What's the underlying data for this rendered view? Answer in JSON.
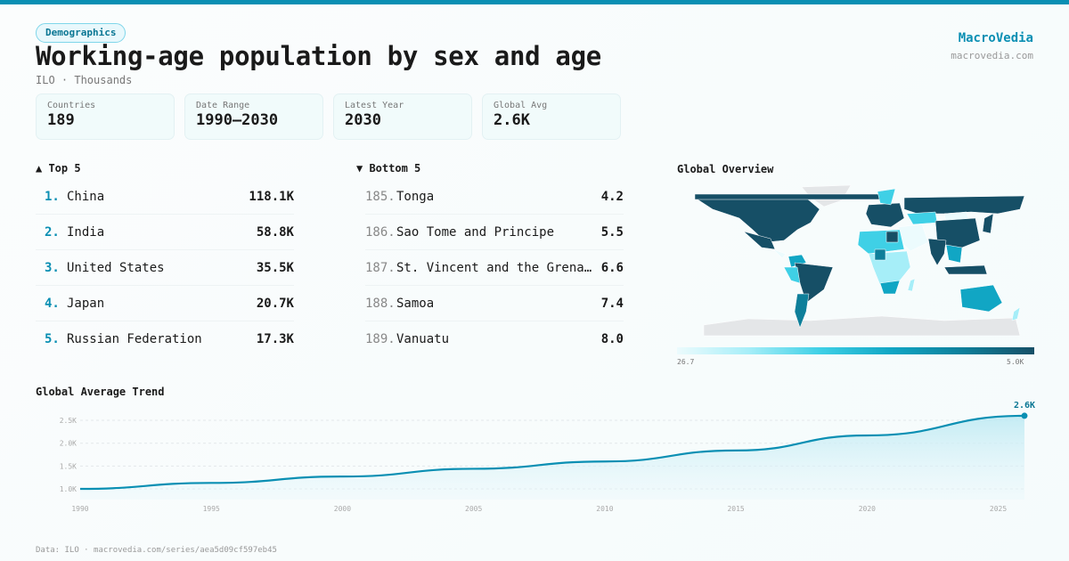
{
  "header": {
    "badge": "Demographics",
    "title": "Working-age population by sex and age",
    "subtitle": "ILO · Thousands",
    "brand": "MacroVedia",
    "brand_url": "macrovedia.com"
  },
  "stats": [
    {
      "label": "Countries",
      "value": "189"
    },
    {
      "label": "Date Range",
      "value": "1990–2030"
    },
    {
      "label": "Latest Year",
      "value": "2030"
    },
    {
      "label": "Global Avg",
      "value": "2.6K"
    }
  ],
  "top": {
    "title": "▲ Top 5",
    "items": [
      {
        "rank": "1.",
        "name": "China",
        "value": "118.1K"
      },
      {
        "rank": "2.",
        "name": "India",
        "value": "58.8K"
      },
      {
        "rank": "3.",
        "name": "United States",
        "value": "35.5K"
      },
      {
        "rank": "4.",
        "name": "Japan",
        "value": "20.7K"
      },
      {
        "rank": "5.",
        "name": "Russian Federation",
        "value": "17.3K"
      }
    ]
  },
  "bottom": {
    "title": "▼ Bottom 5",
    "items": [
      {
        "rank": "185.",
        "name": "Tonga",
        "value": "4.2"
      },
      {
        "rank": "186.",
        "name": "Sao Tome and Principe",
        "value": "5.5"
      },
      {
        "rank": "187.",
        "name": "St. Vincent and the Grenadines",
        "value": "6.6"
      },
      {
        "rank": "188.",
        "name": "Samoa",
        "value": "7.4"
      },
      {
        "rank": "189.",
        "name": "Vanuatu",
        "value": "8.0"
      }
    ]
  },
  "map": {
    "title": "Global Overview",
    "legend_min": "26.7",
    "legend_max": "5.0K",
    "colors": [
      "#ecfbfd",
      "#a6eef8",
      "#3fd0e6",
      "#11a6c4",
      "#0e7f9a",
      "#164f66"
    ],
    "no_data": "#e4e6e8"
  },
  "chart_data": {
    "type": "area",
    "title": "Global Average Trend",
    "x": [
      1990,
      1995,
      2000,
      2005,
      2010,
      2015,
      2020,
      2026
    ],
    "values": [
      1.0,
      1.13,
      1.27,
      1.44,
      1.6,
      1.84,
      2.17,
      2.6
    ],
    "unit": "K",
    "ylim": [
      0.8,
      2.6
    ],
    "yticks": [
      "1.0K",
      "1.5K",
      "2.0K",
      "2.5K"
    ],
    "xticks": [
      "1990",
      "1995",
      "2000",
      "2005",
      "2010",
      "2015",
      "2020",
      "2025"
    ],
    "end_label": "2.6K",
    "color": "#0a8fb3",
    "grid": true
  },
  "footer": "Data: ILO · macrovedia.com/series/aea5d09cf597eb45"
}
